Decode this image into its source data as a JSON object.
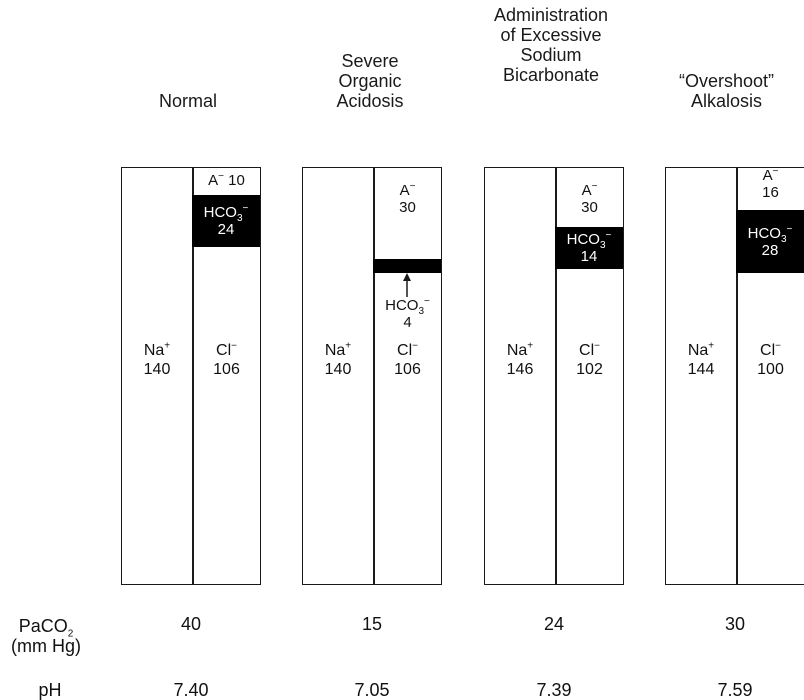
{
  "columns": [
    {
      "title_lines": [
        "Normal"
      ],
      "na": "140",
      "cl": "106",
      "a_minus": "10",
      "hco3": "24",
      "paco2": "40",
      "ph": "7.40"
    },
    {
      "title_lines": [
        "Severe",
        "Organic",
        "Acidosis"
      ],
      "na": "140",
      "cl": "106",
      "a_minus": "30",
      "hco3": "4",
      "paco2": "15",
      "ph": "7.05"
    },
    {
      "title_lines": [
        "Administration",
        "of Excessive",
        "Sodium",
        "Bicarbonate"
      ],
      "na": "146",
      "cl": "102",
      "a_minus": "30",
      "hco3": "14",
      "paco2": "24",
      "ph": "7.39"
    },
    {
      "title_lines": [
        "“Overshoot”",
        "Alkalosis"
      ],
      "na": "144",
      "cl": "100",
      "a_minus": "16",
      "hco3": "28",
      "paco2": "30",
      "ph": "7.59"
    }
  ],
  "ion_labels": {
    "na": "Na",
    "cl": "Cl",
    "a": "A",
    "hco": "HCO",
    "sub3": "3",
    "plus": "+",
    "minus": "−"
  },
  "row_labels": {
    "paco2_main": "PaCO",
    "paco2_sub": "2",
    "paco2_unit": "(mm Hg)",
    "ph": "pH"
  },
  "colors": {
    "ink": "#1a1a1a",
    "block": "#000000",
    "background": "#ffffff"
  }
}
